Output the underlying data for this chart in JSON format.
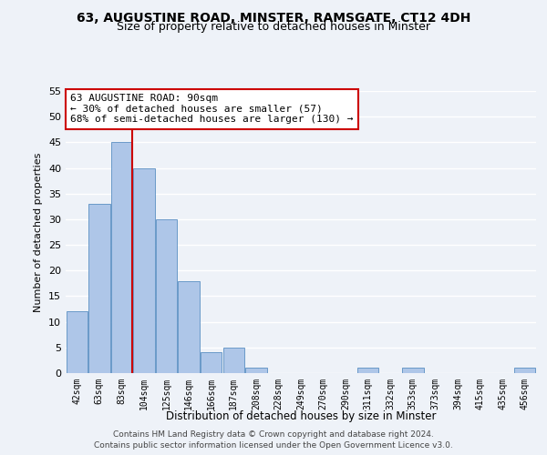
{
  "title1": "63, AUGUSTINE ROAD, MINSTER, RAMSGATE, CT12 4DH",
  "title2": "Size of property relative to detached houses in Minster",
  "xlabel": "Distribution of detached houses by size in Minster",
  "ylabel": "Number of detached properties",
  "categories": [
    "42sqm",
    "63sqm",
    "83sqm",
    "104sqm",
    "125sqm",
    "146sqm",
    "166sqm",
    "187sqm",
    "208sqm",
    "228sqm",
    "249sqm",
    "270sqm",
    "290sqm",
    "311sqm",
    "332sqm",
    "353sqm",
    "373sqm",
    "394sqm",
    "415sqm",
    "435sqm",
    "456sqm"
  ],
  "values": [
    12,
    33,
    45,
    40,
    30,
    18,
    4,
    5,
    1,
    0,
    0,
    0,
    0,
    1,
    0,
    1,
    0,
    0,
    0,
    0,
    1
  ],
  "bar_color": "#aec6e8",
  "bar_edge_color": "#5a8fc2",
  "vline_index": 2,
  "vline_color": "#cc0000",
  "annotation_text": "63 AUGUSTINE ROAD: 90sqm\n← 30% of detached houses are smaller (57)\n68% of semi-detached houses are larger (130) →",
  "annotation_box_color": "#ffffff",
  "annotation_box_edge": "#cc0000",
  "ylim_max": 55,
  "yticks": [
    0,
    5,
    10,
    15,
    20,
    25,
    30,
    35,
    40,
    45,
    50,
    55
  ],
  "footer1": "Contains HM Land Registry data © Crown copyright and database right 2024.",
  "footer2": "Contains public sector information licensed under the Open Government Licence v3.0.",
  "bg_color": "#eef2f8",
  "grid_color": "#ffffff"
}
